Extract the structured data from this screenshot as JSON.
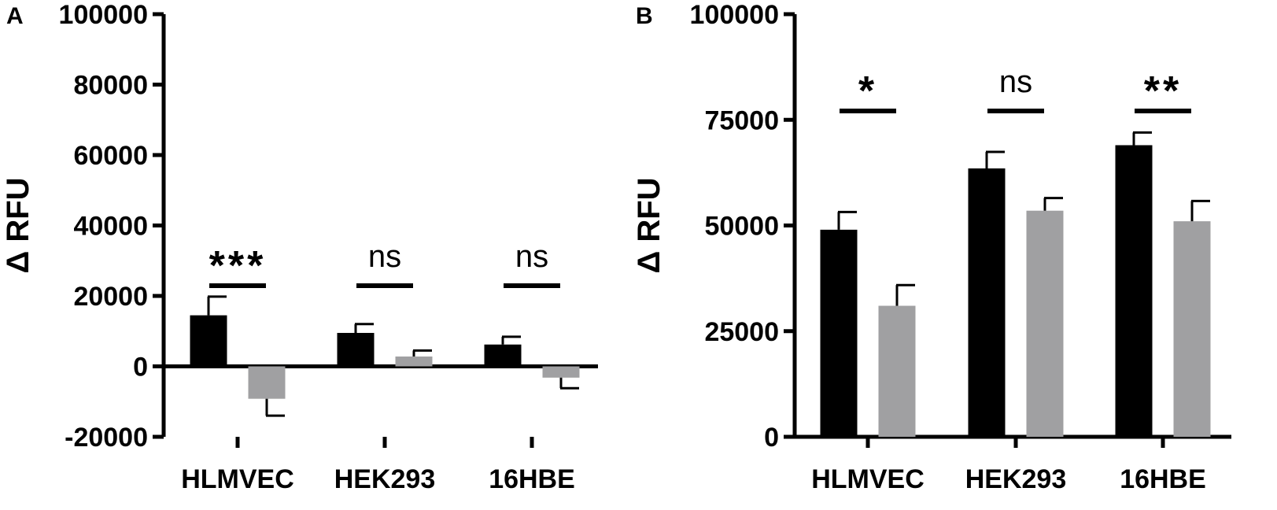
{
  "chart_data": [
    {
      "panel": "A",
      "type": "bar",
      "ylabel": "Δ RFU",
      "ylim": [
        -20000,
        100000
      ],
      "yticks": [
        -20000,
        0,
        20000,
        40000,
        60000,
        80000,
        100000
      ],
      "categories": [
        "HLMVEC",
        "HEK293",
        "16HBE"
      ],
      "series": [
        {
          "color": "#000000",
          "values": [
            14500,
            9500,
            6200
          ],
          "errors": [
            5300,
            2500,
            2200
          ]
        },
        {
          "color": "#a0a0a2",
          "values": [
            -9200,
            2800,
            -3200
          ],
          "errors": [
            4800,
            1700,
            3000
          ]
        }
      ],
      "significance": [
        "***",
        "ns",
        "ns"
      ]
    },
    {
      "panel": "B",
      "type": "bar",
      "ylabel": "Δ RFU",
      "ylim": [
        0,
        100000
      ],
      "yticks": [
        0,
        25000,
        50000,
        75000,
        100000
      ],
      "categories": [
        "HLMVEC",
        "HEK293",
        "16HBE"
      ],
      "series": [
        {
          "color": "#000000",
          "values": [
            49000,
            63500,
            69000
          ],
          "errors": [
            4200,
            3900,
            3000
          ]
        },
        {
          "color": "#a0a0a2",
          "values": [
            31000,
            53500,
            51000
          ],
          "errors": [
            4900,
            3000,
            4800
          ]
        }
      ],
      "significance": [
        "*",
        "ns",
        "**"
      ]
    }
  ]
}
